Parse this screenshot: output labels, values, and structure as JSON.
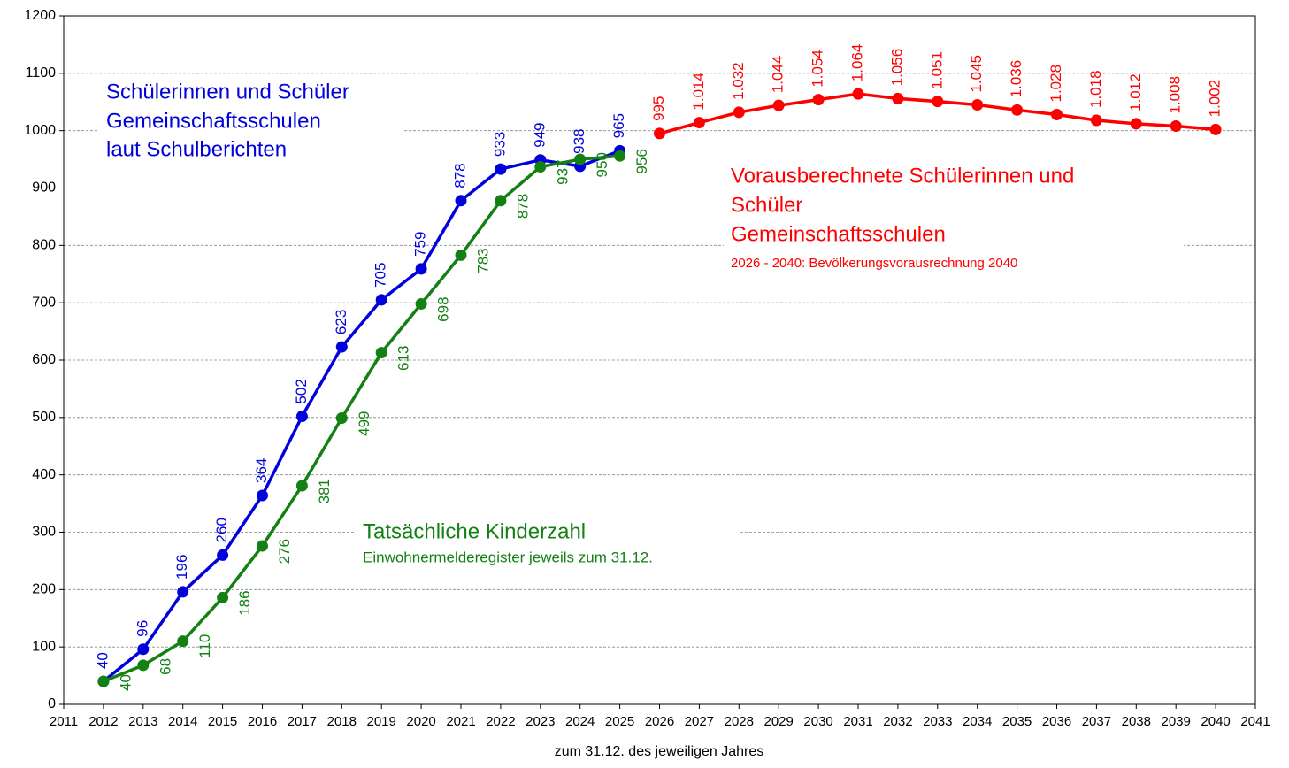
{
  "chart_data": {
    "type": "line",
    "xlabel": "zum 31.12. des jeweiligen Jahres",
    "xlim": [
      2011,
      2041
    ],
    "xticks": [
      2011,
      2012,
      2013,
      2014,
      2015,
      2016,
      2017,
      2018,
      2019,
      2020,
      2021,
      2022,
      2023,
      2024,
      2025,
      2026,
      2027,
      2028,
      2029,
      2030,
      2031,
      2032,
      2033,
      2034,
      2035,
      2036,
      2037,
      2038,
      2039,
      2040,
      2041
    ],
    "ylim": [
      0,
      1200
    ],
    "yticks": [
      0,
      100,
      200,
      300,
      400,
      500,
      600,
      700,
      800,
      900,
      1000,
      1100,
      1200
    ],
    "grid": true,
    "series": [
      {
        "color": "#0000dd",
        "label_side": "above",
        "x": [
          2012,
          2013,
          2014,
          2015,
          2016,
          2017,
          2018,
          2019,
          2020,
          2021,
          2022,
          2023,
          2024,
          2025
        ],
        "values": [
          40,
          96,
          196,
          260,
          364,
          502,
          623,
          705,
          759,
          878,
          933,
          949,
          938,
          965
        ]
      },
      {
        "color": "#138013",
        "label_side": "below",
        "x": [
          2012,
          2013,
          2014,
          2015,
          2016,
          2017,
          2018,
          2019,
          2020,
          2021,
          2022,
          2023,
          2024,
          2025
        ],
        "values": [
          40,
          68,
          110,
          186,
          276,
          381,
          499,
          613,
          698,
          783,
          878,
          937,
          950,
          956
        ]
      },
      {
        "color": "#ff0000",
        "label_side": "above",
        "x": [
          2026,
          2027,
          2028,
          2029,
          2030,
          2031,
          2032,
          2033,
          2034,
          2035,
          2036,
          2037,
          2038,
          2039,
          2040
        ],
        "values": [
          995,
          1014,
          1032,
          1044,
          1054,
          1064,
          1056,
          1051,
          1045,
          1036,
          1028,
          1018,
          1012,
          1008,
          1002
        ],
        "value_labels": [
          "995",
          "1.014",
          "1.032",
          "1.044",
          "1.054",
          "1.064",
          "1.056",
          "1.051",
          "1.045",
          "1.036",
          "1.028",
          "1.018",
          "1.012",
          "1.008",
          "1.002"
        ]
      }
    ],
    "annotations": [
      "Schülerinnen und Schüler",
      "Gemeinschaftsschulen",
      "laut Schulberichten",
      "Vorausberechnete Schülerinnen und",
      "Schüler",
      "Gemeinschaftsschulen",
      "2026 - 2040: Bevölkerungsvorausrechnung 2040",
      "Tatsächliche Kinderzahl",
      "Einwohnermelderegister jeweils zum 31.12."
    ]
  }
}
